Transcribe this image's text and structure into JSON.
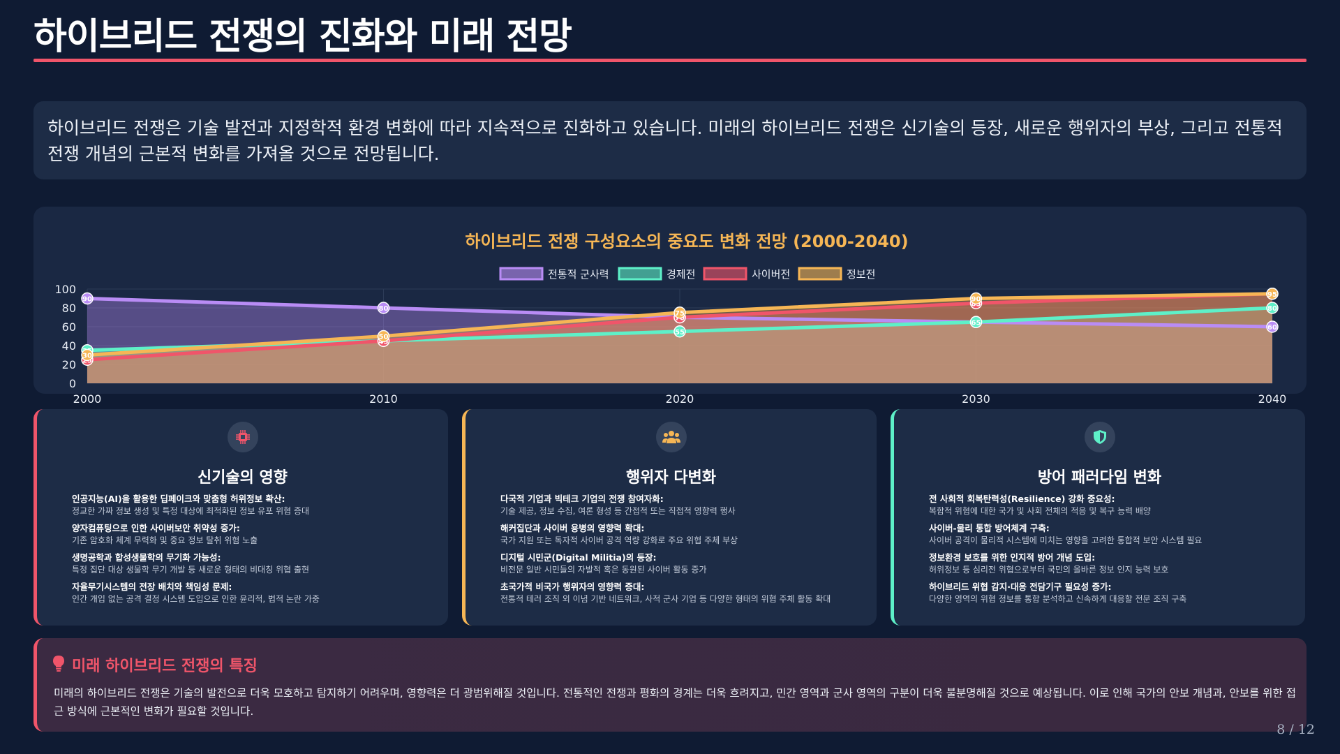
{
  "title": "하이브리드 전쟁의 진화와 미래 전망",
  "intro": "하이브리드 전쟁은 기술 발전과 지정학적 환경 변화에 따라 지속적으로 진화하고 있습니다. 미래의 하이브리드 전쟁은 신기술의 등장, 새로운 행위자의 부상, 그리고 전통적 전쟁 개념의 근본적 변화를 가져올 것으로 전망됩니다.",
  "chart_data": {
    "type": "area",
    "title": "하이브리드 전쟁 구성요소의 중요도 변화 전망 (2000-2040)",
    "x": [
      "2000",
      "2010",
      "2020",
      "2030",
      "2040"
    ],
    "ylim": [
      0,
      100
    ],
    "yticks": [
      0,
      20,
      40,
      60,
      80,
      100
    ],
    "grid": true,
    "legend_position": "top-center",
    "series": [
      {
        "name": "전통적 군사력",
        "values": [
          90,
          80,
          70,
          65,
          60
        ],
        "color": "#b98cf5"
      },
      {
        "name": "경제전",
        "values": [
          35,
          45,
          55,
          65,
          80
        ],
        "color": "#5ef0c8"
      },
      {
        "name": "사이버전",
        "values": [
          25,
          45,
          70,
          85,
          95
        ],
        "color": "#f0556a"
      },
      {
        "name": "정보전",
        "values": [
          30,
          50,
          75,
          90,
          95
        ],
        "color": "#f6b655"
      }
    ]
  },
  "cards": [
    {
      "title": "신기술의 영향",
      "icon": "cpu-icon",
      "items": [
        {
          "h": "인공지능(AI)을 활용한 딥페이크와 맞춤형 허위정보 확산:",
          "d": "정교한 가짜 정보 생성 및 특정 대상에 최적화된 정보 유포 위협 증대"
        },
        {
          "h": "양자컴퓨팅으로 인한 사이버보안 취약성 증가:",
          "d": "기존 암호화 체계 무력화 및 중요 정보 탈취 위험 노출"
        },
        {
          "h": "생명공학과 합성생물학의 무기화 가능성:",
          "d": "특정 집단 대상 생물학 무기 개발 등 새로운 형태의 비대칭 위협 출현"
        },
        {
          "h": "자율무기시스템의 전장 배치와 책임성 문제:",
          "d": "인간 개입 없는 공격 결정 시스템 도입으로 인한 윤리적, 법적 논란 가중"
        }
      ]
    },
    {
      "title": "행위자 다변화",
      "icon": "users-icon",
      "items": [
        {
          "h": "다국적 기업과 빅테크 기업의 전쟁 참여자화:",
          "d": "기술 제공, 정보 수집, 여론 형성 등 간접적 또는 직접적 영향력 행사"
        },
        {
          "h": "해커집단과 사이버 용병의 영향력 확대:",
          "d": "국가 지원 또는 독자적 사이버 공격 역량 강화로 주요 위협 주체 부상"
        },
        {
          "h": "디지털 시민군(Digital Militia)의 등장:",
          "d": "비전문 일반 시민들의 자발적 혹은 동원된 사이버 활동 증가"
        },
        {
          "h": "초국가적 비국가 행위자의 영향력 증대:",
          "d": "전통적 테러 조직 외 이념 기반 네트워크, 사적 군사 기업 등 다양한 형태의 위협 주체 활동 확대"
        }
      ]
    },
    {
      "title": "방어 패러다임 변화",
      "icon": "shield-icon",
      "items": [
        {
          "h": "전 사회적 회복탄력성(Resilience) 강화 중요성:",
          "d": "복합적 위협에 대한 국가 및 사회 전체의 적응 및 복구 능력 배양"
        },
        {
          "h": "사이버-물리 통합 방어체계 구축:",
          "d": "사이버 공격이 물리적 시스템에 미치는 영향을 고려한 통합적 보안 시스템 필요"
        },
        {
          "h": "정보환경 보호를 위한 인지적 방어 개념 도입:",
          "d": "허위정보 등 심리전 위협으로부터 국민의 올바른 정보 인지 능력 보호"
        },
        {
          "h": "하이브리드 위협 감지·대응 전담기구 필요성 증가:",
          "d": "다양한 영역의 위협 정보를 통합 분석하고 신속하게 대응할 전문 조직 구축"
        }
      ]
    }
  ],
  "future": {
    "title": "미래 하이브리드 전쟁의 특징",
    "icon": "lightbulb-icon",
    "text": "미래의 하이브리드 전쟁은 기술의 발전으로 더욱 모호하고 탐지하기 어려우며, 영향력은 더 광범위해질 것입니다. 전통적인 전쟁과 평화의 경계는 더욱 흐려지고, 민간 영역과 군사 영역의 구분이 더욱 불분명해질 것으로 예상됩니다. 이로 인해 국가의 안보 개념과, 안보를 위한 접근 방식에 근본적인 변화가 필요할 것입니다."
  },
  "page_number": "8 / 12"
}
